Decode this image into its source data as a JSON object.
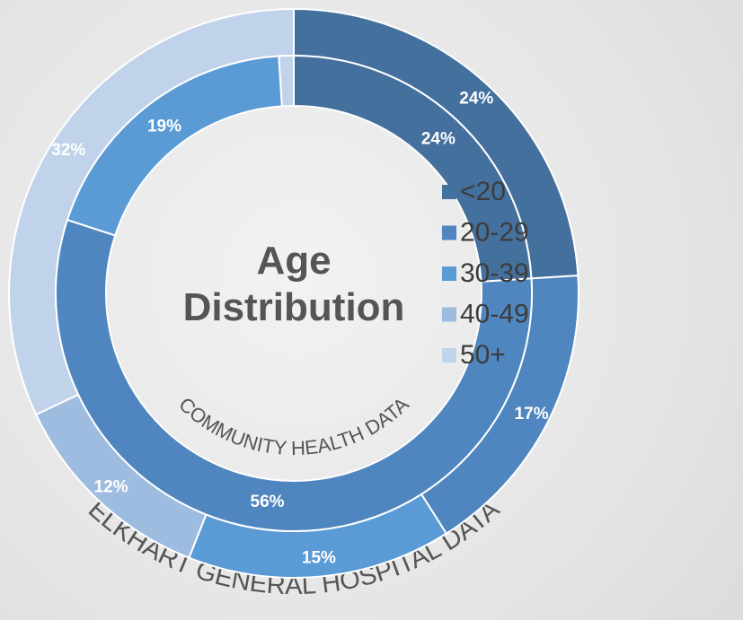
{
  "chart_data": {
    "type": "donut",
    "title": "Age Distribution",
    "categories": [
      "<20",
      "20-29",
      "30-39",
      "40-49",
      "50+"
    ],
    "colors": [
      "#44709d",
      "#4f86bf",
      "#5b9bd5",
      "#9dbce0",
      "#c0d3ea"
    ],
    "series": [
      {
        "name": "ELKHART GENERAL HOSPITAL DATA",
        "ring": "outer",
        "values": [
          24,
          17,
          15,
          12,
          32
        ],
        "value_labels": [
          "24%",
          "17%",
          "15%",
          "12%",
          "32%"
        ]
      },
      {
        "name": "COMMUNITY HEALTH DATA",
        "ring": "inner",
        "values": [
          24,
          56,
          19,
          0,
          1
        ],
        "value_labels": [
          "24%",
          "56%",
          "19%",
          null,
          null
        ]
      }
    ],
    "legend": "right"
  }
}
